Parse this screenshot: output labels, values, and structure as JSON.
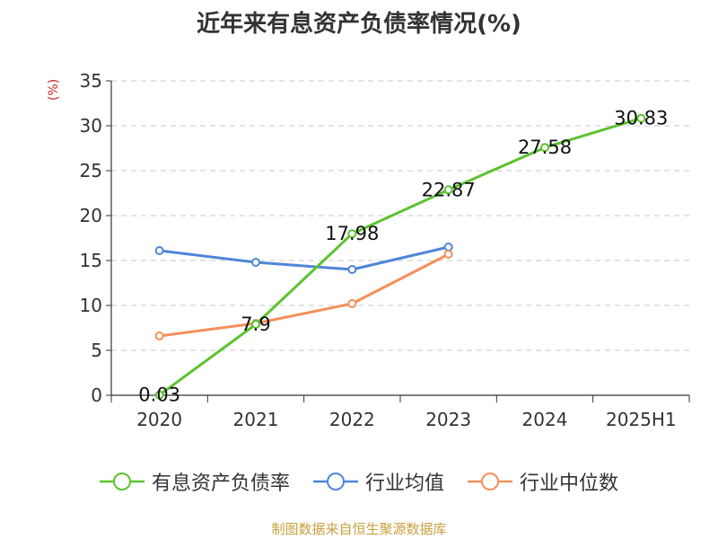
{
  "chart_data": {
    "type": "line",
    "title": "近年来有息资产负债率情况(%)",
    "ylabel": "(%)",
    "xlabel": "",
    "categories": [
      "2020",
      "2021",
      "2022",
      "2023",
      "2024",
      "2025H1"
    ],
    "ylim": [
      0,
      35
    ],
    "yticks": [
      0,
      5,
      10,
      15,
      20,
      25,
      30,
      35
    ],
    "grid": true,
    "legend_position": "bottom",
    "series": [
      {
        "name": "有息资产负债率",
        "color": "#5cc230",
        "values": [
          0.03,
          7.9,
          17.98,
          22.87,
          27.58,
          30.83
        ],
        "labels": [
          "0.03",
          "7.9",
          "17.98",
          "22.87",
          "27.58",
          "30.83"
        ]
      },
      {
        "name": "行业均值",
        "color": "#4f86d9",
        "values": [
          16.1,
          14.8,
          14.0,
          16.5,
          null,
          null
        ]
      },
      {
        "name": "行业中位数",
        "color": "#f58f5a",
        "values": [
          6.6,
          8.0,
          10.2,
          15.7,
          null,
          null
        ]
      }
    ]
  },
  "source": "制图数据来自恒生聚源数据库"
}
